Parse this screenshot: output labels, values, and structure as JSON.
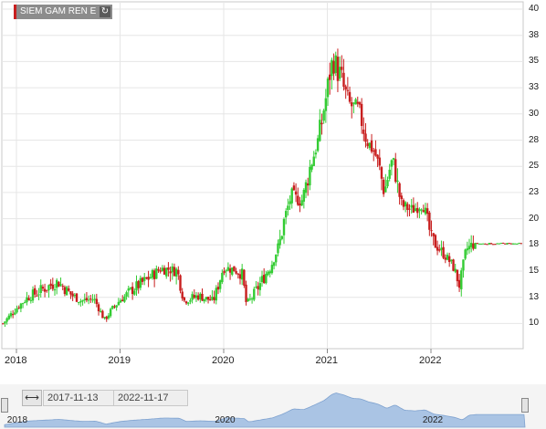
{
  "series_label": "SIEM GAM REN E",
  "colors": {
    "up": "#33cc33",
    "down": "#c81e1e",
    "grid": "#e6e6e6",
    "navigator": "#aac4e4"
  },
  "icons": {
    "refresh": "refresh-icon",
    "range": "double-arrow-icon"
  },
  "range": {
    "from": "2017-11-13",
    "to": "2022-11-17"
  },
  "navigator": {
    "labels": [
      "2018",
      "2020",
      "2022"
    ]
  },
  "chart_data": {
    "type": "candlestick",
    "y_ticks": [
      "40",
      "38",
      "35",
      "33",
      "30",
      "28",
      "25",
      "23",
      "20",
      "18",
      "15",
      "13",
      "10"
    ],
    "x_ticks": [
      "2018",
      "2019",
      "2020",
      "2021",
      "2022"
    ],
    "ylim": [
      8.5,
      40.5
    ],
    "grid": true,
    "weekly_close_waypoints": [
      {
        "t": 2017.87,
        "v": 10.0
      },
      {
        "t": 2017.98,
        "v": 11.5
      },
      {
        "t": 2018.1,
        "v": 12.9
      },
      {
        "t": 2018.25,
        "v": 13.6
      },
      {
        "t": 2018.4,
        "v": 14.2
      },
      {
        "t": 2018.5,
        "v": 13.4
      },
      {
        "t": 2018.62,
        "v": 12.6
      },
      {
        "t": 2018.75,
        "v": 12.8
      },
      {
        "t": 2018.85,
        "v": 10.4
      },
      {
        "t": 2018.92,
        "v": 11.6
      },
      {
        "t": 2019.0,
        "v": 12.7
      },
      {
        "t": 2019.12,
        "v": 13.6
      },
      {
        "t": 2019.25,
        "v": 14.3
      },
      {
        "t": 2019.4,
        "v": 15.3
      },
      {
        "t": 2019.55,
        "v": 15.1
      },
      {
        "t": 2019.62,
        "v": 12.6
      },
      {
        "t": 2019.75,
        "v": 13.1
      },
      {
        "t": 2019.9,
        "v": 12.6
      },
      {
        "t": 2020.0,
        "v": 15.4
      },
      {
        "t": 2020.1,
        "v": 15.2
      },
      {
        "t": 2020.18,
        "v": 14.8
      },
      {
        "t": 2020.22,
        "v": 12.2
      },
      {
        "t": 2020.32,
        "v": 13.6
      },
      {
        "t": 2020.45,
        "v": 15.4
      },
      {
        "t": 2020.55,
        "v": 18.5
      },
      {
        "t": 2020.65,
        "v": 22.6
      },
      {
        "t": 2020.75,
        "v": 22.0
      },
      {
        "t": 2020.85,
        "v": 25.5
      },
      {
        "t": 2020.95,
        "v": 29.5
      },
      {
        "t": 2021.02,
        "v": 34.0
      },
      {
        "t": 2021.06,
        "v": 35.3
      },
      {
        "t": 2021.14,
        "v": 33.5
      },
      {
        "t": 2021.22,
        "v": 31.0
      },
      {
        "t": 2021.3,
        "v": 30.5
      },
      {
        "t": 2021.38,
        "v": 28.0
      },
      {
        "t": 2021.46,
        "v": 26.5
      },
      {
        "t": 2021.55,
        "v": 23.0
      },
      {
        "t": 2021.63,
        "v": 25.8
      },
      {
        "t": 2021.72,
        "v": 21.5
      },
      {
        "t": 2021.82,
        "v": 21.0
      },
      {
        "t": 2021.92,
        "v": 21.8
      },
      {
        "t": 2022.0,
        "v": 18.5
      },
      {
        "t": 2022.1,
        "v": 17.3
      },
      {
        "t": 2022.2,
        "v": 15.8
      },
      {
        "t": 2022.28,
        "v": 13.8
      },
      {
        "t": 2022.34,
        "v": 17.5
      },
      {
        "t": 2022.42,
        "v": 18.1
      },
      {
        "t": 2022.88,
        "v": 18.1
      }
    ]
  }
}
